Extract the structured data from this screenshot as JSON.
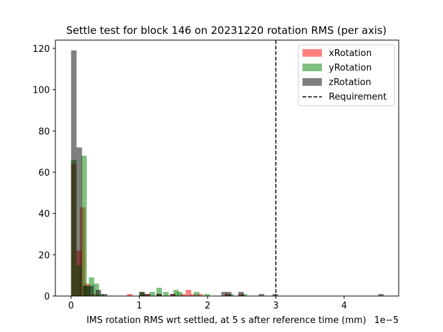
{
  "chart_data": {
    "type": "bar",
    "title": "Settle test for block 146 on 20231220 rotation RMS (per axis)",
    "xlabel": "IMS rotation RMS wrt settled, at 5 s after reference time (mm)",
    "ylabel": "",
    "x_offset_text": "1e−5",
    "xlim": [
      -0.23,
      4.8
    ],
    "ylim": [
      0,
      124
    ],
    "xticks": [
      0,
      1,
      2,
      3,
      4
    ],
    "xtick_labels": [
      "0",
      "1",
      "2",
      "3",
      "4"
    ],
    "yticks": [
      0,
      20,
      40,
      60,
      80,
      100,
      120
    ],
    "ytick_labels": [
      "0",
      "20",
      "40",
      "60",
      "80",
      "100",
      "120"
    ],
    "bin_width": 0.08,
    "requirement": {
      "label": "Requirement",
      "x": 3.0
    },
    "legend_position": "upper right",
    "series": [
      {
        "name": "xRotation",
        "color": "#ff0000",
        "alpha": 0.5,
        "bins": [
          {
            "x": 0.0,
            "y": 64
          },
          {
            "x": 0.08,
            "y": 22
          },
          {
            "x": 0.13,
            "y": 43
          },
          {
            "x": 0.2,
            "y": 6
          },
          {
            "x": 0.3,
            "y": 1
          },
          {
            "x": 0.82,
            "y": 1
          },
          {
            "x": 1.0,
            "y": 1
          },
          {
            "x": 1.08,
            "y": 1
          },
          {
            "x": 1.25,
            "y": 1
          },
          {
            "x": 1.45,
            "y": 1
          },
          {
            "x": 1.6,
            "y": 1
          },
          {
            "x": 1.68,
            "y": 3
          },
          {
            "x": 1.75,
            "y": 1
          },
          {
            "x": 1.85,
            "y": 1
          },
          {
            "x": 2.25,
            "y": 1
          },
          {
            "x": 2.45,
            "y": 1
          }
        ]
      },
      {
        "name": "yRotation",
        "color": "#008000",
        "alpha": 0.5,
        "bins": [
          {
            "x": 0.0,
            "y": 66
          },
          {
            "x": 0.08,
            "y": 15
          },
          {
            "x": 0.15,
            "y": 68
          },
          {
            "x": 0.2,
            "y": 5
          },
          {
            "x": 0.26,
            "y": 9
          },
          {
            "x": 0.33,
            "y": 6
          },
          {
            "x": 0.4,
            "y": 1
          },
          {
            "x": 1.0,
            "y": 2
          },
          {
            "x": 1.15,
            "y": 2
          },
          {
            "x": 1.25,
            "y": 4
          },
          {
            "x": 1.35,
            "y": 2
          },
          {
            "x": 1.5,
            "y": 3
          },
          {
            "x": 1.55,
            "y": 2
          },
          {
            "x": 1.8,
            "y": 2
          },
          {
            "x": 1.95,
            "y": 1
          },
          {
            "x": 2.3,
            "y": 1
          },
          {
            "x": 2.5,
            "y": 1
          }
        ]
      },
      {
        "name": "zRotation",
        "color": "#000000",
        "alpha": 0.5,
        "bins": [
          {
            "x": 0.0,
            "y": 119
          },
          {
            "x": 0.08,
            "y": 72
          },
          {
            "x": 0.17,
            "y": 5
          },
          {
            "x": 0.25,
            "y": 5
          },
          {
            "x": 0.36,
            "y": 3
          },
          {
            "x": 0.45,
            "y": 1
          },
          {
            "x": 1.0,
            "y": 2
          },
          {
            "x": 1.08,
            "y": 1
          },
          {
            "x": 1.25,
            "y": 1
          },
          {
            "x": 1.45,
            "y": 1
          },
          {
            "x": 2.2,
            "y": 2
          },
          {
            "x": 2.27,
            "y": 2
          },
          {
            "x": 2.45,
            "y": 2
          },
          {
            "x": 2.75,
            "y": 1
          },
          {
            "x": 2.95,
            "y": 1
          },
          {
            "x": 4.5,
            "y": 1
          }
        ]
      }
    ]
  }
}
